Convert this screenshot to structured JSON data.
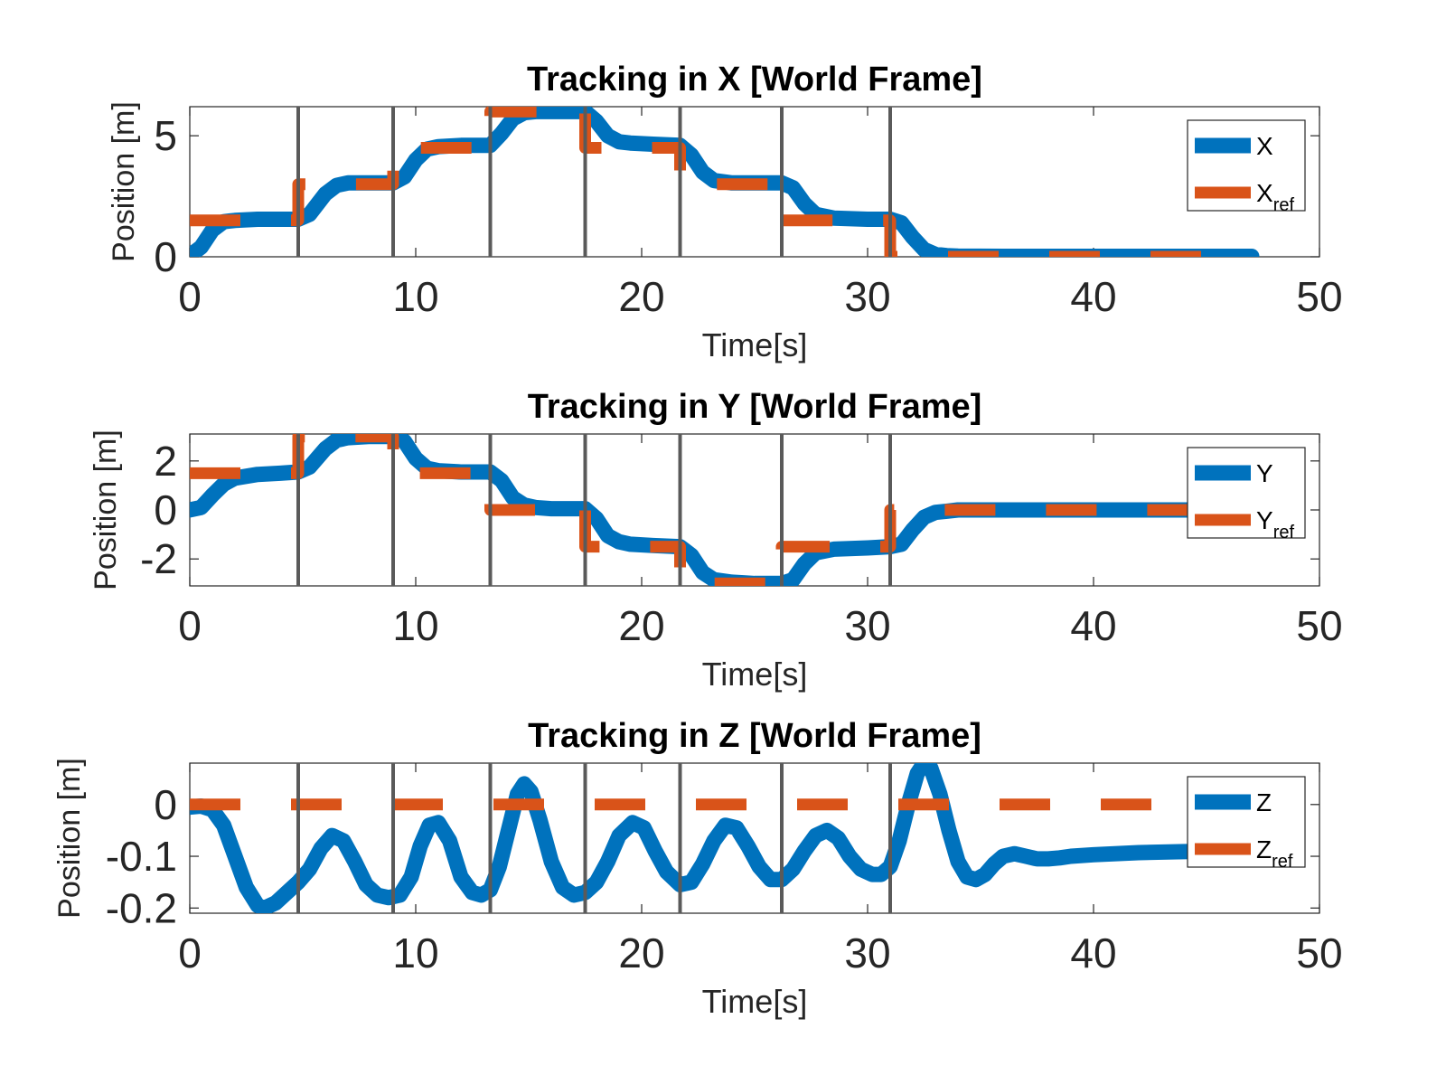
{
  "chart_data": [
    {
      "type": "line",
      "title": "Tracking in X [World Frame]",
      "xlabel": "Time[s]",
      "ylabel": "Position [m]",
      "xlim": [
        0,
        50
      ],
      "ylim": [
        0,
        6.2
      ],
      "xticks": [
        "0",
        "10",
        "20",
        "30",
        "40",
        "50"
      ],
      "yticks": [
        "0",
        "5"
      ],
      "legend_position": "top-right",
      "event_lines": [
        4.8,
        9.0,
        13.3,
        17.5,
        21.7,
        26.2,
        31.0
      ],
      "series": [
        {
          "name": "X",
          "color": "#0072BD",
          "style": "solid",
          "x": [
            0,
            0.5,
            1,
            1.5,
            2,
            3,
            4,
            4.8,
            5.3,
            6,
            6.5,
            7,
            8,
            9,
            9.5,
            10,
            10.5,
            11,
            12,
            13.3,
            13.8,
            14.3,
            14.8,
            15.3,
            16,
            17,
            17.5,
            18,
            18.5,
            19,
            19.5,
            20.5,
            21.7,
            22.2,
            22.7,
            23.2,
            24,
            25,
            26.2,
            26.7,
            27.2,
            27.7,
            28.5,
            30,
            31,
            31.5,
            32,
            32.5,
            33,
            33.5,
            34,
            36,
            40,
            47
          ],
          "y": [
            0.05,
            0.4,
            1.1,
            1.45,
            1.5,
            1.55,
            1.55,
            1.55,
            1.75,
            2.6,
            2.95,
            3.05,
            3.05,
            3.05,
            3.3,
            4.0,
            4.45,
            4.55,
            4.6,
            4.6,
            5.1,
            5.7,
            5.95,
            6.0,
            6.0,
            6.0,
            6.0,
            5.6,
            5.0,
            4.75,
            4.7,
            4.65,
            4.6,
            4.2,
            3.5,
            3.15,
            3.05,
            3.05,
            3.05,
            2.85,
            2.2,
            1.75,
            1.6,
            1.55,
            1.55,
            1.4,
            0.8,
            0.3,
            0.1,
            0.05,
            0.03,
            0.02,
            0.02,
            0.02
          ]
        },
        {
          "name": "X_ref",
          "color": "#D95319",
          "style": "dashed",
          "x": [
            0,
            4.8,
            4.8,
            9.0,
            9.0,
            13.3,
            13.3,
            17.5,
            17.5,
            21.7,
            21.7,
            26.2,
            26.2,
            31.0,
            31.0,
            47
          ],
          "y": [
            1.5,
            1.5,
            3.0,
            3.0,
            4.5,
            4.5,
            6.0,
            6.0,
            4.5,
            4.5,
            3.0,
            3.0,
            1.5,
            1.5,
            0.0,
            0.0
          ]
        }
      ]
    },
    {
      "type": "line",
      "title": "Tracking in Y [World Frame]",
      "xlabel": "Time[s]",
      "ylabel": "Position [m]",
      "xlim": [
        0,
        50
      ],
      "ylim": [
        -3.1,
        3.1
      ],
      "xticks": [
        "0",
        "10",
        "20",
        "30",
        "40",
        "50"
      ],
      "yticks": [
        "2",
        "0",
        "-2"
      ],
      "legend_position": "top-right",
      "event_lines": [
        4.8,
        9.0,
        13.3,
        17.5,
        21.7,
        26.2,
        31.0
      ],
      "series": [
        {
          "name": "Y",
          "color": "#0072BD",
          "style": "solid",
          "x": [
            0,
            0.5,
            1,
            1.5,
            2,
            3,
            4,
            4.8,
            5.3,
            6,
            6.5,
            7,
            8,
            9,
            9.5,
            10,
            10.5,
            11,
            12,
            13.3,
            13.8,
            14.3,
            14.8,
            15.3,
            16,
            17,
            17.5,
            18,
            18.5,
            19,
            19.5,
            20.5,
            21.7,
            22.2,
            22.7,
            23.2,
            24,
            25,
            26.2,
            26.7,
            27.2,
            27.7,
            28.5,
            30,
            31,
            31.5,
            32,
            32.5,
            33,
            33.5,
            34,
            36,
            40,
            47
          ],
          "y": [
            0.0,
            0.1,
            0.6,
            1.05,
            1.3,
            1.45,
            1.5,
            1.55,
            1.75,
            2.5,
            2.85,
            2.95,
            3.0,
            3.0,
            2.8,
            2.1,
            1.7,
            1.6,
            1.55,
            1.55,
            1.2,
            0.5,
            0.2,
            0.1,
            0.05,
            0.05,
            0.05,
            -0.35,
            -1.05,
            -1.3,
            -1.4,
            -1.45,
            -1.5,
            -1.85,
            -2.55,
            -2.85,
            -2.95,
            -3.0,
            -3.0,
            -2.85,
            -2.2,
            -1.75,
            -1.6,
            -1.55,
            -1.5,
            -1.4,
            -0.8,
            -0.3,
            -0.1,
            -0.05,
            0.0,
            0.0,
            0.0,
            0.0
          ]
        },
        {
          "name": "Y_ref",
          "color": "#D95319",
          "style": "dashed",
          "x": [
            0,
            4.8,
            4.8,
            9.0,
            9.0,
            13.3,
            13.3,
            17.5,
            17.5,
            21.7,
            21.7,
            26.2,
            26.2,
            31.0,
            31.0,
            47
          ],
          "y": [
            1.5,
            1.5,
            3.0,
            3.0,
            1.5,
            1.5,
            0.0,
            0.0,
            -1.5,
            -1.5,
            -3.0,
            -3.0,
            -1.5,
            -1.5,
            0.0,
            0.0
          ]
        }
      ]
    },
    {
      "type": "line",
      "title": "Tracking in Z [World Frame]",
      "xlabel": "Time[s]",
      "ylabel": "Position [m]",
      "xlim": [
        0,
        50
      ],
      "ylim": [
        -0.21,
        0.08
      ],
      "xticks": [
        "0",
        "10",
        "20",
        "30",
        "40",
        "50"
      ],
      "yticks": [
        "0",
        "-0.1",
        "-0.2"
      ],
      "legend_position": "top-right",
      "event_lines": [
        4.8,
        9.0,
        13.3,
        17.5,
        21.7,
        26.2,
        31.0
      ],
      "series": [
        {
          "name": "Z",
          "color": "#0072BD",
          "style": "solid",
          "x": [
            0,
            0.5,
            1,
            1.5,
            2,
            2.5,
            3,
            3.3,
            3.8,
            4.3,
            4.8,
            5.3,
            5.8,
            6.3,
            6.8,
            7.3,
            7.8,
            8.3,
            8.8,
            9.3,
            9.8,
            10.2,
            10.6,
            11.0,
            11.5,
            12.0,
            12.5,
            12.9,
            13.3,
            13.7,
            14.1,
            14.5,
            14.8,
            15.1,
            15.5,
            16.0,
            16.5,
            17.0,
            17.5,
            18.0,
            18.5,
            19.0,
            19.6,
            20.1,
            20.6,
            21.1,
            21.7,
            22.2,
            22.7,
            23.2,
            23.7,
            24.2,
            24.7,
            25.2,
            25.7,
            26.2,
            26.7,
            27.2,
            27.7,
            28.2,
            28.7,
            29.2,
            29.7,
            30.2,
            30.6,
            31.0,
            31.4,
            31.8,
            32.2,
            32.5,
            32.8,
            33.2,
            33.6,
            34.0,
            34.4,
            34.8,
            35.2,
            35.6,
            36.0,
            36.5,
            37.0,
            37.5,
            38.0,
            38.5,
            39.0,
            40.0,
            42.0,
            44.0,
            46.0,
            47.0
          ],
          "y": [
            -0.005,
            -0.003,
            -0.01,
            -0.04,
            -0.1,
            -0.16,
            -0.195,
            -0.2,
            -0.19,
            -0.17,
            -0.15,
            -0.125,
            -0.085,
            -0.06,
            -0.07,
            -0.11,
            -0.155,
            -0.175,
            -0.18,
            -0.175,
            -0.14,
            -0.08,
            -0.04,
            -0.035,
            -0.07,
            -0.14,
            -0.17,
            -0.175,
            -0.165,
            -0.12,
            -0.05,
            0.02,
            0.04,
            0.025,
            -0.03,
            -0.11,
            -0.16,
            -0.175,
            -0.17,
            -0.15,
            -0.11,
            -0.06,
            -0.035,
            -0.045,
            -0.09,
            -0.13,
            -0.155,
            -0.15,
            -0.115,
            -0.07,
            -0.04,
            -0.045,
            -0.08,
            -0.12,
            -0.145,
            -0.145,
            -0.125,
            -0.09,
            -0.06,
            -0.05,
            -0.065,
            -0.1,
            -0.125,
            -0.135,
            -0.135,
            -0.12,
            -0.07,
            0.0,
            0.06,
            0.08,
            0.07,
            0.02,
            -0.05,
            -0.11,
            -0.14,
            -0.145,
            -0.135,
            -0.115,
            -0.1,
            -0.095,
            -0.1,
            -0.105,
            -0.105,
            -0.103,
            -0.1,
            -0.097,
            -0.093,
            -0.091,
            -0.09,
            -0.09
          ]
        },
        {
          "name": "Z_ref",
          "color": "#D95319",
          "style": "dashed",
          "x": [
            0,
            47
          ],
          "y": [
            0.0,
            0.0
          ]
        }
      ]
    }
  ],
  "legend_labels": [
    [
      {
        "main": "X",
        "sub": ""
      },
      {
        "main": "X",
        "sub": "ref"
      }
    ],
    [
      {
        "main": "Y",
        "sub": ""
      },
      {
        "main": "Y",
        "sub": "ref"
      }
    ],
    [
      {
        "main": "Z",
        "sub": ""
      },
      {
        "main": "Z",
        "sub": "ref"
      }
    ]
  ]
}
